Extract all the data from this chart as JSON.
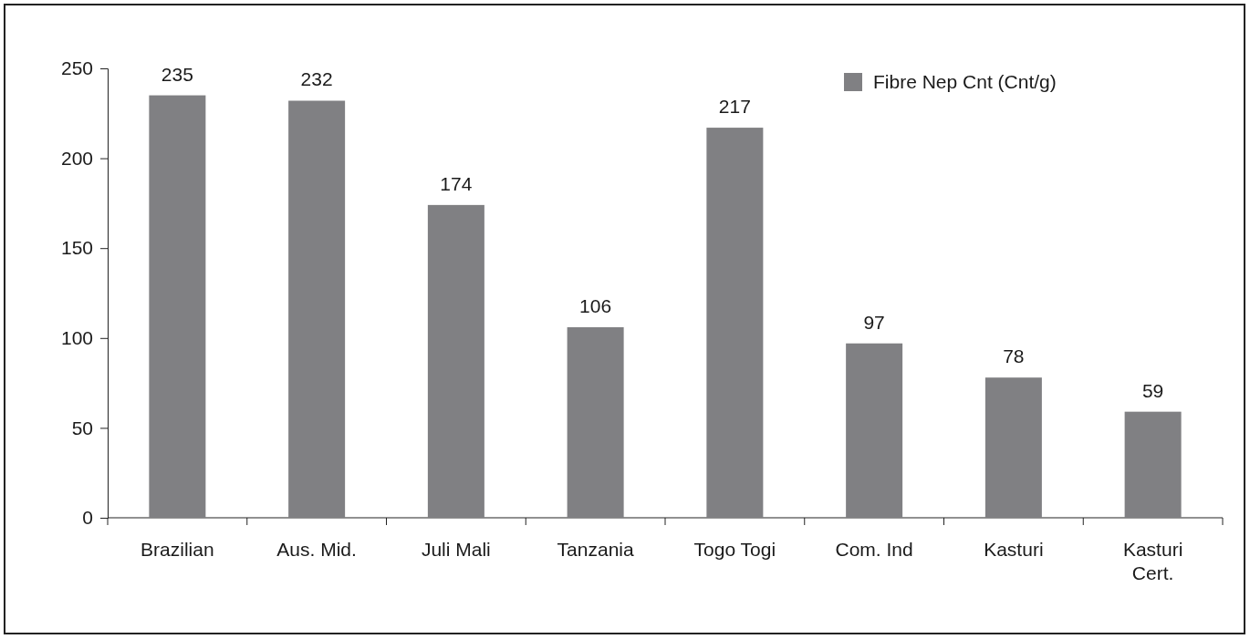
{
  "chart_data": {
    "type": "bar",
    "categories": [
      "Brazilian",
      "Aus. Mid.",
      "Juli Mali",
      "Tanzania",
      "Togo Togi",
      "Com. Ind",
      "Kasturi",
      "Kasturi Cert."
    ],
    "series": [
      {
        "name": "Fibre Nep Cnt (Cnt/g)",
        "color": "#808083",
        "values": [
          235,
          232,
          174,
          106,
          217,
          97,
          78,
          59
        ]
      }
    ],
    "ylim": [
      0,
      250
    ],
    "yticks": [
      0,
      50,
      100,
      150,
      200,
      250
    ],
    "data_labels": true,
    "legend": "top right",
    "grid": false
  }
}
